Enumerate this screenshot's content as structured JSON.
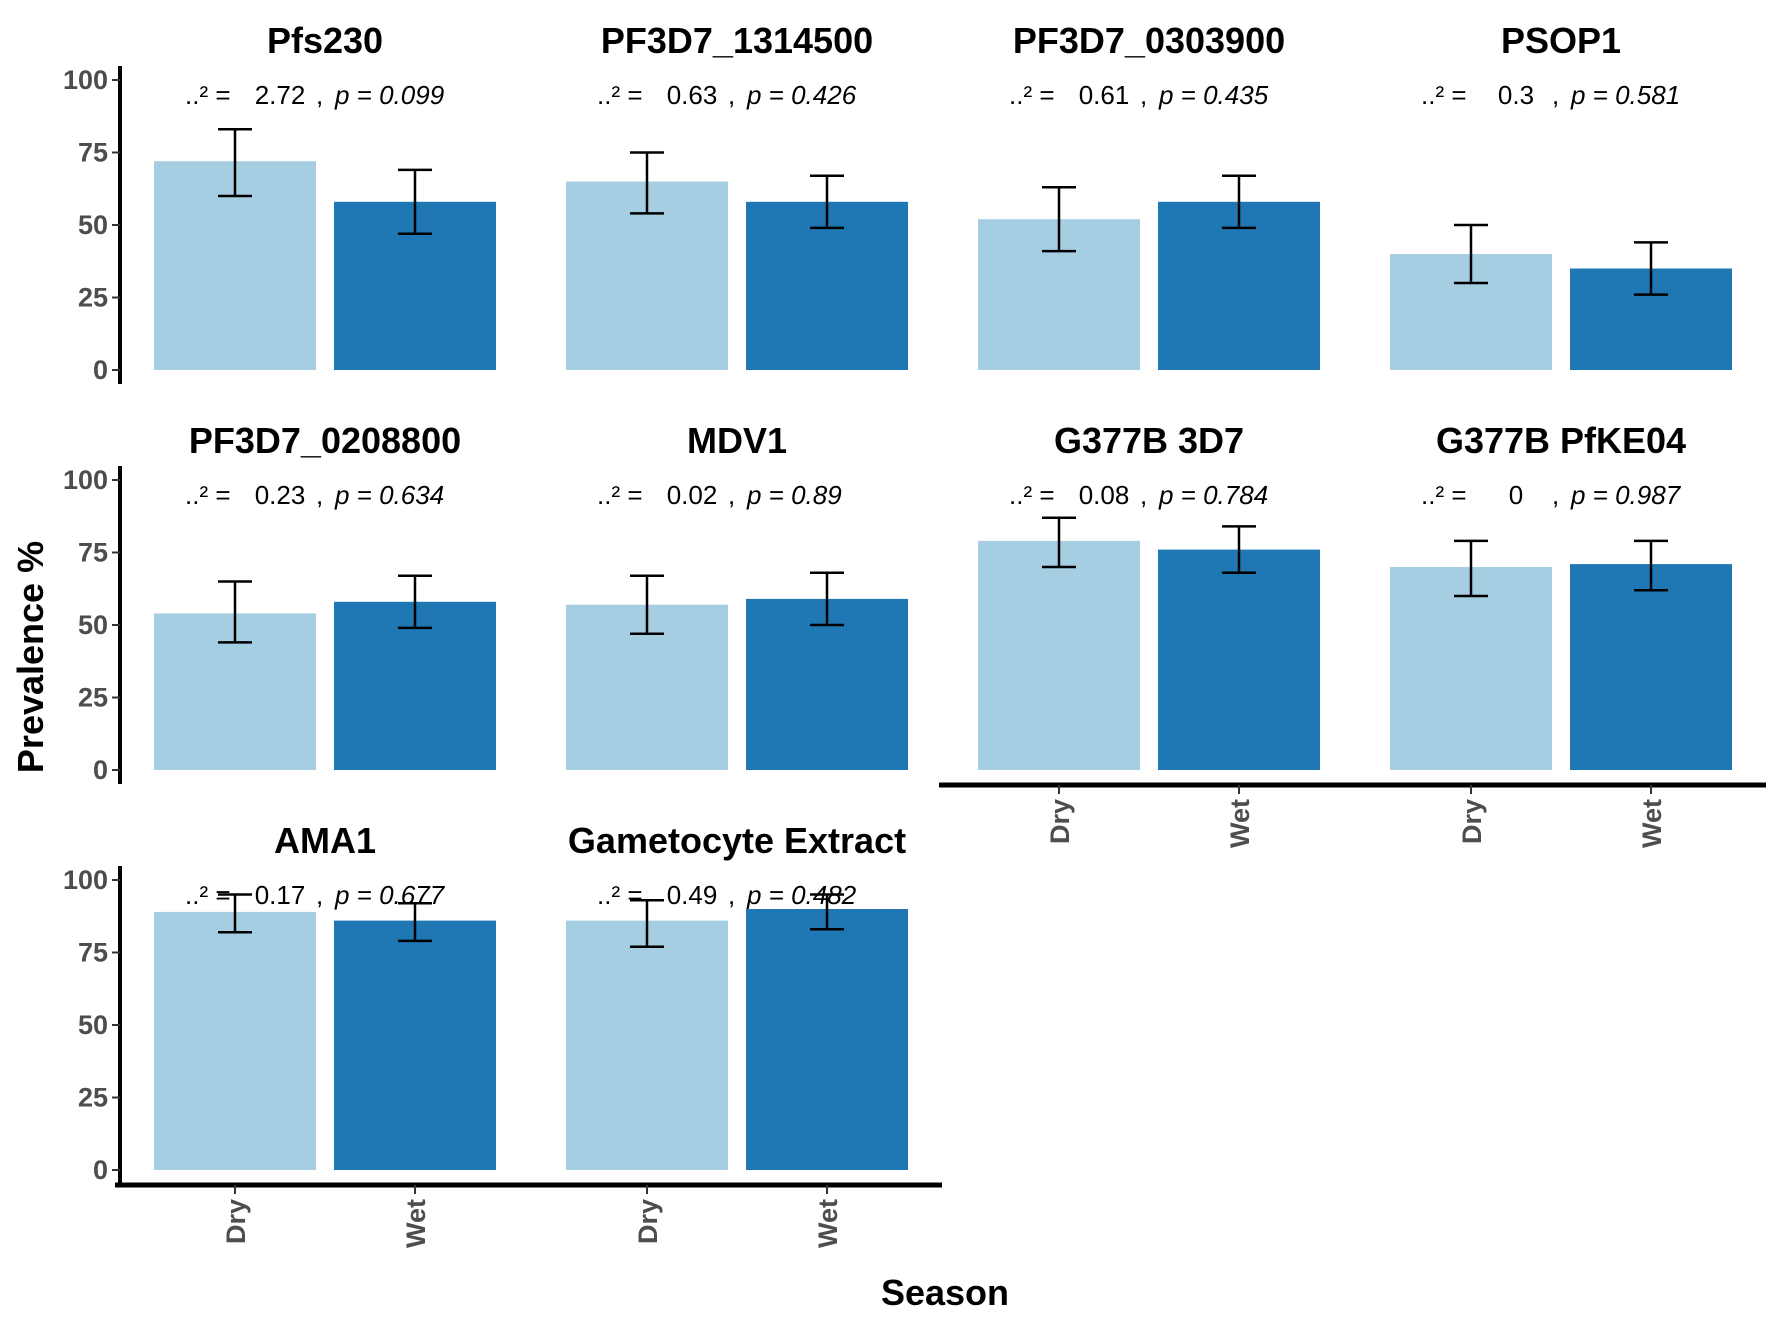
{
  "chart_data": {
    "type": "bar",
    "xlabel": "Season",
    "ylabel": "Prevalence %",
    "ylim": [
      0,
      100
    ],
    "yticks": [
      0,
      25,
      50,
      75,
      100
    ],
    "categories": [
      "Dry",
      "Wet"
    ],
    "colors": {
      "Dry": "#a6cee3",
      "Wet": "#1f78b4"
    },
    "facets": [
      {
        "title": "Pfs230",
        "chi_label": "..² =",
        "chi_value": "2.72",
        "p_label": "p = 0.099",
        "values": [
          72,
          58
        ],
        "err_low": [
          60,
          47
        ],
        "err_high": [
          83,
          69
        ]
      },
      {
        "title": "PF3D7_1314500",
        "chi_label": "..² =",
        "chi_value": "0.63",
        "p_label": "p = 0.426",
        "values": [
          65,
          58
        ],
        "err_low": [
          54,
          49
        ],
        "err_high": [
          75,
          67
        ]
      },
      {
        "title": "PF3D7_0303900",
        "chi_label": "..² =",
        "chi_value": "0.61",
        "p_label": "p = 0.435",
        "values": [
          52,
          58
        ],
        "err_low": [
          41,
          49
        ],
        "err_high": [
          63,
          67
        ]
      },
      {
        "title": "PSOP1",
        "chi_label": "..² =",
        "chi_value": "0.3",
        "p_label": "p = 0.581",
        "values": [
          40,
          35
        ],
        "err_low": [
          30,
          26
        ],
        "err_high": [
          50,
          44
        ]
      },
      {
        "title": "PF3D7_0208800",
        "chi_label": "..² =",
        "chi_value": "0.23",
        "p_label": "p = 0.634",
        "values": [
          54,
          58
        ],
        "err_low": [
          44,
          49
        ],
        "err_high": [
          65,
          67
        ]
      },
      {
        "title": "MDV1",
        "chi_label": "..² =",
        "chi_value": "0.02",
        "p_label": "p = 0.89",
        "values": [
          57,
          59
        ],
        "err_low": [
          47,
          50
        ],
        "err_high": [
          67,
          68
        ]
      },
      {
        "title": "G377B 3D7",
        "chi_label": "..² =",
        "chi_value": "0.08",
        "p_label": "p = 0.784",
        "values": [
          79,
          76
        ],
        "err_low": [
          70,
          68
        ],
        "err_high": [
          87,
          84
        ]
      },
      {
        "title": "G377B PfKE04",
        "chi_label": "..² =",
        "chi_value": "0",
        "p_label": "p = 0.987",
        "values": [
          70,
          71
        ],
        "err_low": [
          60,
          62
        ],
        "err_high": [
          79,
          79
        ]
      },
      {
        "title": "AMA1",
        "chi_label": "..² =",
        "chi_value": "0.17",
        "p_label": "p = 0.677",
        "values": [
          89,
          86
        ],
        "err_low": [
          82,
          79
        ],
        "err_high": [
          95,
          92
        ]
      },
      {
        "title": "Gametocyte Extract",
        "chi_label": "..² =",
        "chi_value": "0.49",
        "p_label": "p = 0.482",
        "values": [
          86,
          90
        ],
        "err_low": [
          77,
          83
        ],
        "err_high": [
          93,
          95
        ]
      }
    ]
  }
}
